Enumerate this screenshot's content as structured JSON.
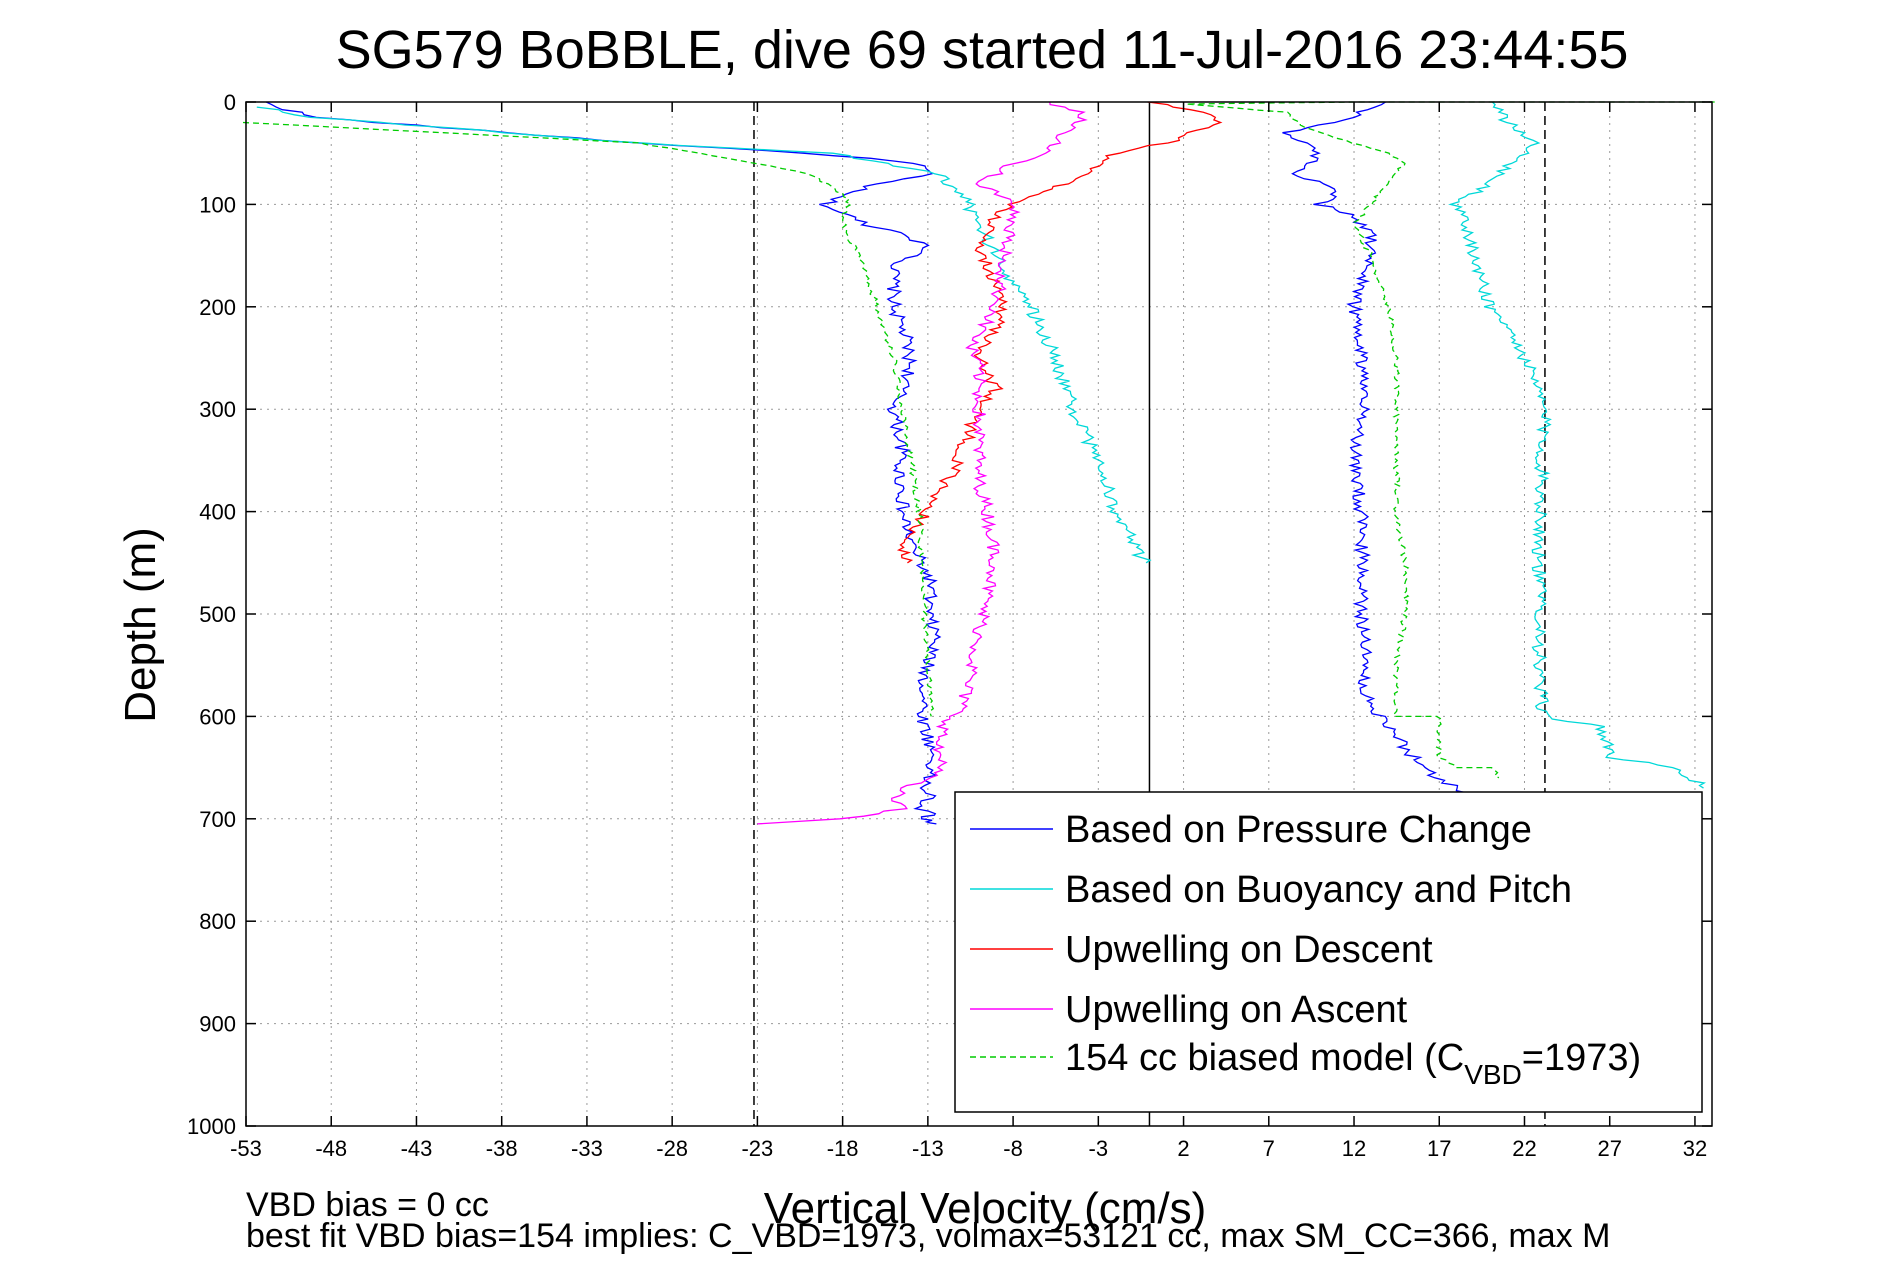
{
  "chart_data": {
    "type": "line",
    "title": "SG579 BoBBLE, dive 69 started 11-Jul-2016 23:44:55",
    "xlabel": "Vertical Velocity (cm/s)",
    "ylabel": "Depth (m)",
    "xlim": [
      -53,
      33
    ],
    "ylim": [
      0,
      1000
    ],
    "y_reversed": true,
    "grid": true,
    "x_ticks": [
      "-53",
      "-48",
      "-43",
      "-38",
      "-33",
      "-28",
      "-23",
      "-18",
      "-13",
      "-8",
      "-3",
      "2",
      "7",
      "12",
      "17",
      "22",
      "27",
      "32"
    ],
    "y_ticks": [
      "0",
      "100",
      "200",
      "300",
      "400",
      "500",
      "600",
      "700",
      "800",
      "900",
      "1000"
    ],
    "reference_lines": [
      {
        "x": -23.2,
        "style": "dashed",
        "color": "#000000"
      },
      {
        "x": 0,
        "style": "solid",
        "color": "#000000"
      },
      {
        "x": 23.2,
        "style": "dashed",
        "color": "#000000"
      }
    ],
    "legend_position": "bottom-right",
    "series": [
      {
        "name": "Based on Pressure Change",
        "color": "#0000ff",
        "style": "solid",
        "x": [
          -52,
          -49,
          -30,
          -20,
          -13.5,
          -13,
          -16,
          -18,
          -19,
          -18.5,
          -16.5,
          -14,
          -13,
          -15,
          -15,
          -14.3,
          -14,
          -15,
          -14.5,
          -14.7,
          -14.5,
          -14.5,
          -14,
          -12.8,
          -13,
          -12.5,
          -13.2,
          -13.3,
          -13,
          -12.7,
          -12.8,
          -13.2,
          -12.8,
          -14,
          -12.5,
          -13,
          -13.5,
          -12.8,
          -12.5
        ],
        "y": [
          0,
          15,
          40,
          50,
          60,
          70,
          80,
          90,
          100,
          105,
          120,
          130,
          145,
          160,
          200,
          230,
          260,
          300,
          340,
          360,
          380,
          400,
          430,
          470,
          500,
          520,
          560,
          600,
          620,
          640,
          650,
          670,
          680,
          690,
          695,
          698,
          700,
          703,
          705
        ]
      },
      {
        "name": "Based on Buoyancy and Pitch",
        "color": "#00d8d8",
        "style": "solid",
        "x": [
          -52,
          -49,
          -30,
          -18.5,
          -12.5,
          -11,
          -10,
          -9,
          -7,
          -5.5,
          -4.5,
          -3,
          -2,
          -1,
          -0.5,
          -0.2
        ],
        "y": [
          5,
          15,
          40,
          50,
          70,
          90,
          120,
          150,
          200,
          250,
          300,
          350,
          400,
          430,
          445,
          450
        ]
      },
      {
        "name": "Upwelling on Descent",
        "color": "#ff0000",
        "style": "solid",
        "x": [
          0,
          3,
          4,
          1,
          -2,
          -4,
          -6,
          -8,
          -9,
          -10,
          -9.5,
          -8.5,
          -9,
          -10,
          -9,
          -10,
          -10.5,
          -11,
          -11.5,
          -12.5,
          -13,
          -14,
          -14.5,
          -14.2
        ],
        "y": [
          0,
          10,
          20,
          40,
          50,
          75,
          85,
          100,
          110,
          150,
          160,
          200,
          220,
          250,
          280,
          300,
          320,
          340,
          360,
          380,
          400,
          420,
          440,
          450
        ]
      },
      {
        "name": "Upwelling on Ascent",
        "color": "#ff00ff",
        "style": "solid",
        "x": [
          -6,
          -4,
          -4.2,
          -5.5,
          -6,
          -8,
          -9,
          -10,
          -8,
          -8.5,
          -9,
          -10.5,
          -10,
          -10,
          -10,
          -10,
          -9.5,
          -9,
          -9.5,
          -10,
          -10.5,
          -11,
          -12,
          -12.5,
          -12,
          -13,
          -14.5,
          -15,
          -14.5,
          -18,
          -23
        ],
        "y": [
          0,
          10,
          20,
          40,
          50,
          60,
          70,
          80,
          100,
          150,
          200,
          240,
          260,
          290,
          330,
          370,
          400,
          450,
          480,
          520,
          560,
          590,
          610,
          630,
          650,
          660,
          670,
          680,
          690,
          700,
          705
        ]
      },
      {
        "name": "154 cc biased model (C",
        "name_sub": "VBD",
        "name_tail": "=1973)",
        "color": "#00cc00",
        "style": "dashed",
        "x": [
          -53,
          -30,
          -23,
          -20,
          -18,
          -17.5,
          -18,
          -17.8,
          -17,
          -16,
          -15,
          -14.5,
          -13.5,
          -13.2,
          -13,
          -12.8
        ],
        "y": [
          20,
          40,
          60,
          70,
          90,
          100,
          110,
          130,
          150,
          200,
          250,
          300,
          400,
          500,
          550,
          600
        ]
      }
    ],
    "extra_series": [
      {
        "color": "#0000ff",
        "style": "solid",
        "x": [
          14,
          11,
          8,
          10,
          8.5,
          10,
          11,
          10,
          12,
          13,
          13,
          12,
          12.5,
          12.5,
          12,
          12.4,
          12.5,
          12.5,
          12.4,
          12.7,
          12.5,
          13,
          14,
          15,
          16,
          17,
          18,
          19
        ],
        "y": [
          0,
          20,
          30,
          50,
          70,
          80,
          90,
          100,
          110,
          130,
          150,
          200,
          250,
          300,
          350,
          400,
          450,
          480,
          500,
          530,
          560,
          590,
          610,
          630,
          650,
          660,
          670,
          680
        ]
      },
      {
        "color": "#00d8d8",
        "style": "solid",
        "x": [
          20,
          21,
          22.5,
          20,
          18,
          18.5,
          19,
          20,
          21,
          22,
          23.2,
          23,
          23,
          22.8,
          23,
          22.8,
          23,
          23.2,
          26.5,
          27,
          31,
          32.5
        ],
        "y": [
          0,
          20,
          40,
          80,
          100,
          120,
          150,
          200,
          220,
          250,
          300,
          350,
          400,
          450,
          500,
          550,
          590,
          600,
          610,
          640,
          650,
          670
        ]
      },
      {
        "color": "#00cc00",
        "style": "dashed",
        "x": [
          33,
          12,
          2,
          8,
          9,
          12,
          14,
          15,
          14,
          13,
          12,
          13,
          14,
          14.5,
          14.5,
          14.5,
          15,
          15,
          14.5,
          14.5,
          17,
          17,
          18,
          20,
          20.5
        ],
        "y": [
          0,
          0,
          2,
          10,
          25,
          40,
          50,
          60,
          80,
          100,
          120,
          150,
          200,
          250,
          300,
          400,
          450,
          500,
          550,
          600,
          600,
          640,
          650,
          650,
          660
        ]
      }
    ]
  },
  "annotations": {
    "vbd_bias": "VBD bias = 0 cc",
    "best_fit": "best fit VBD bias=154 implies: C_VBD=1973, volmax=53121 cc, max SM_CC=366, max M"
  }
}
